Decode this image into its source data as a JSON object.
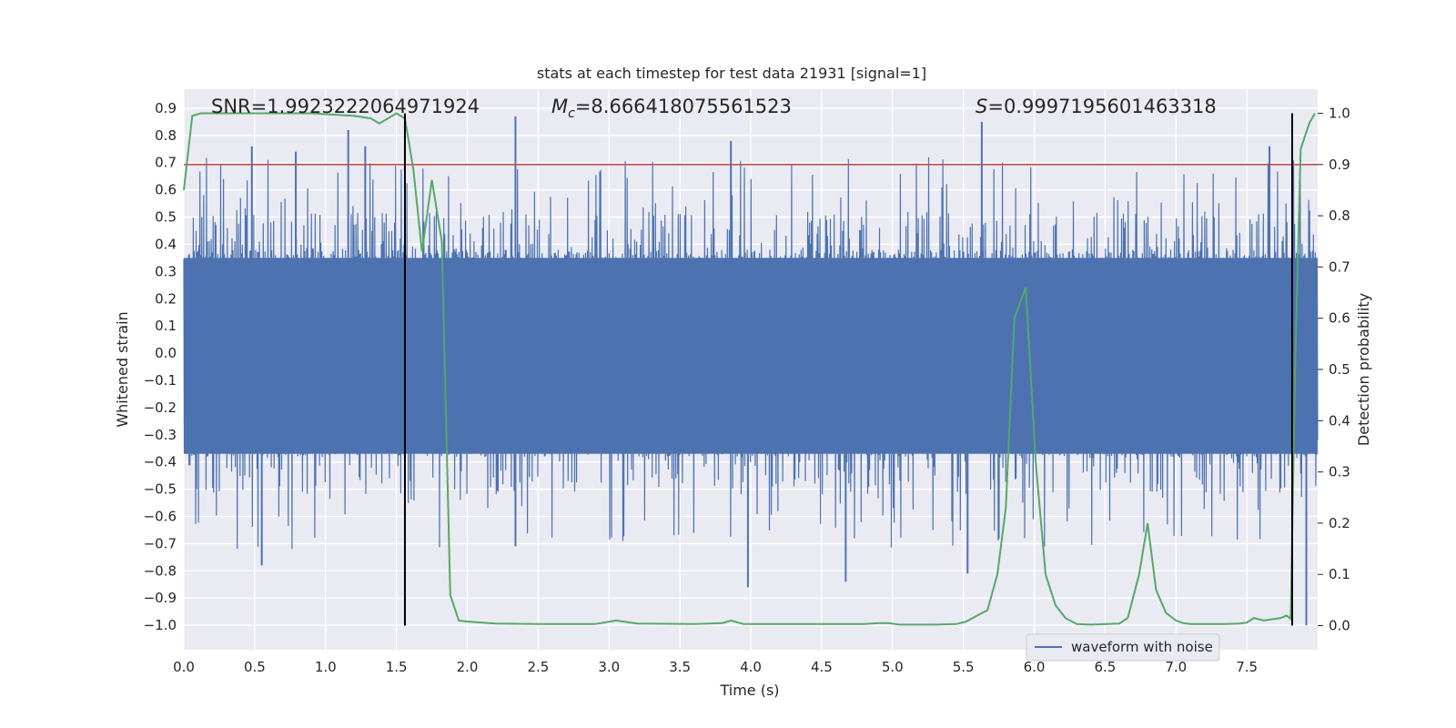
{
  "chart_data": {
    "type": "line",
    "title": "stats at each timestep for test data 21931 [signal=1]",
    "xlabel": "Time (s)",
    "ylabel": "Whitened strain",
    "y2label": "Detection probability",
    "xlim": [
      0.0,
      8.0
    ],
    "ylim": [
      -1.09,
      0.97
    ],
    "y2lim": [
      -0.047,
      1.047
    ],
    "xticks": [
      "0.0",
      "0.5",
      "1.0",
      "1.5",
      "2.0",
      "2.5",
      "3.0",
      "3.5",
      "4.0",
      "4.5",
      "5.0",
      "5.5",
      "6.0",
      "6.5",
      "7.0",
      "7.5"
    ],
    "yticks": [
      "0.9",
      "0.8",
      "0.7",
      "0.6",
      "0.5",
      "0.4",
      "0.3",
      "0.2",
      "0.1",
      "0.0",
      "−0.1",
      "−0.2",
      "−0.3",
      "−0.4",
      "−0.5",
      "−0.6",
      "−0.7",
      "−0.8",
      "−0.9",
      "−1.0"
    ],
    "y2ticks": [
      "1.0",
      "0.9",
      "0.8",
      "0.7",
      "0.6",
      "0.5",
      "0.4",
      "0.3",
      "0.2",
      "0.1",
      "0.0"
    ],
    "annotations": {
      "snr": "SNR=1.9923222064971924",
      "mc_symbol": "M",
      "mc_sub": "c",
      "mc_value": "=8.666418075561523",
      "s_symbol": "S",
      "s_value": "=0.9997195601463318"
    },
    "legend": {
      "label": "waveform with noise",
      "placement": "lower-right"
    },
    "threshold": {
      "y2": 0.9,
      "color": "#c44e52"
    },
    "vlines": [
      {
        "x": 1.56,
        "y2_range": [
          0.0,
          1.0
        ]
      },
      {
        "x": 7.82,
        "y2_range": [
          0.0,
          1.0
        ]
      }
    ],
    "waveform": {
      "name": "waveform with noise",
      "color": "#4c72b0",
      "x_range": [
        0.0,
        8.0
      ],
      "core_band": [
        -0.37,
        0.35
      ],
      "peaks": [
        {
          "x": 0.48,
          "y": 0.76
        },
        {
          "x": 0.55,
          "y": -0.78
        },
        {
          "x": 0.79,
          "y": 0.74
        },
        {
          "x": 1.16,
          "y": 0.82
        },
        {
          "x": 1.28,
          "y": 0.76
        },
        {
          "x": 2.34,
          "y": 0.87
        },
        {
          "x": 2.34,
          "y": -0.71
        },
        {
          "x": 3.86,
          "y": 0.78
        },
        {
          "x": 3.98,
          "y": -0.86
        },
        {
          "x": 4.67,
          "y": -0.84
        },
        {
          "x": 5.63,
          "y": 0.85
        },
        {
          "x": 5.53,
          "y": -0.81
        },
        {
          "x": 7.66,
          "y": 0.76
        },
        {
          "x": 7.92,
          "y": -1.0
        }
      ]
    },
    "series": [
      {
        "name": "",
        "axis": "right",
        "color": "#55a868",
        "x": [
          0.0,
          0.06,
          0.12,
          0.3,
          0.6,
          0.9,
          1.2,
          1.32,
          1.38,
          1.44,
          1.5,
          1.56,
          1.62,
          1.68,
          1.75,
          1.82,
          1.88,
          1.94,
          2.0,
          2.2,
          2.5,
          2.9,
          3.05,
          3.2,
          3.6,
          3.8,
          3.86,
          3.95,
          4.3,
          4.8,
          4.9,
          4.97,
          5.05,
          5.3,
          5.45,
          5.52,
          5.6,
          5.67,
          5.74,
          5.8,
          5.86,
          5.94,
          6.01,
          6.08,
          6.15,
          6.22,
          6.3,
          6.4,
          6.6,
          6.66,
          6.74,
          6.8,
          6.86,
          6.93,
          7.0,
          7.05,
          7.1,
          7.2,
          7.35,
          7.45,
          7.5,
          7.55,
          7.62,
          7.74,
          7.78,
          7.81,
          7.84,
          7.88,
          7.94,
          7.98
        ],
        "values": [
          0.85,
          0.995,
          1.0,
          1.0,
          1.0,
          1.0,
          0.995,
          0.99,
          0.98,
          0.99,
          1.0,
          0.99,
          0.89,
          0.73,
          0.87,
          0.75,
          0.06,
          0.01,
          0.008,
          0.004,
          0.003,
          0.003,
          0.01,
          0.004,
          0.003,
          0.005,
          0.01,
          0.003,
          0.003,
          0.003,
          0.005,
          0.005,
          0.002,
          0.002,
          0.003,
          0.008,
          0.02,
          0.03,
          0.1,
          0.23,
          0.6,
          0.66,
          0.32,
          0.1,
          0.04,
          0.015,
          0.003,
          0.002,
          0.004,
          0.015,
          0.1,
          0.2,
          0.07,
          0.025,
          0.01,
          0.005,
          0.003,
          0.003,
          0.003,
          0.004,
          0.006,
          0.015,
          0.01,
          0.015,
          0.02,
          0.013,
          0.5,
          0.93,
          0.98,
          1.0
        ]
      }
    ]
  }
}
